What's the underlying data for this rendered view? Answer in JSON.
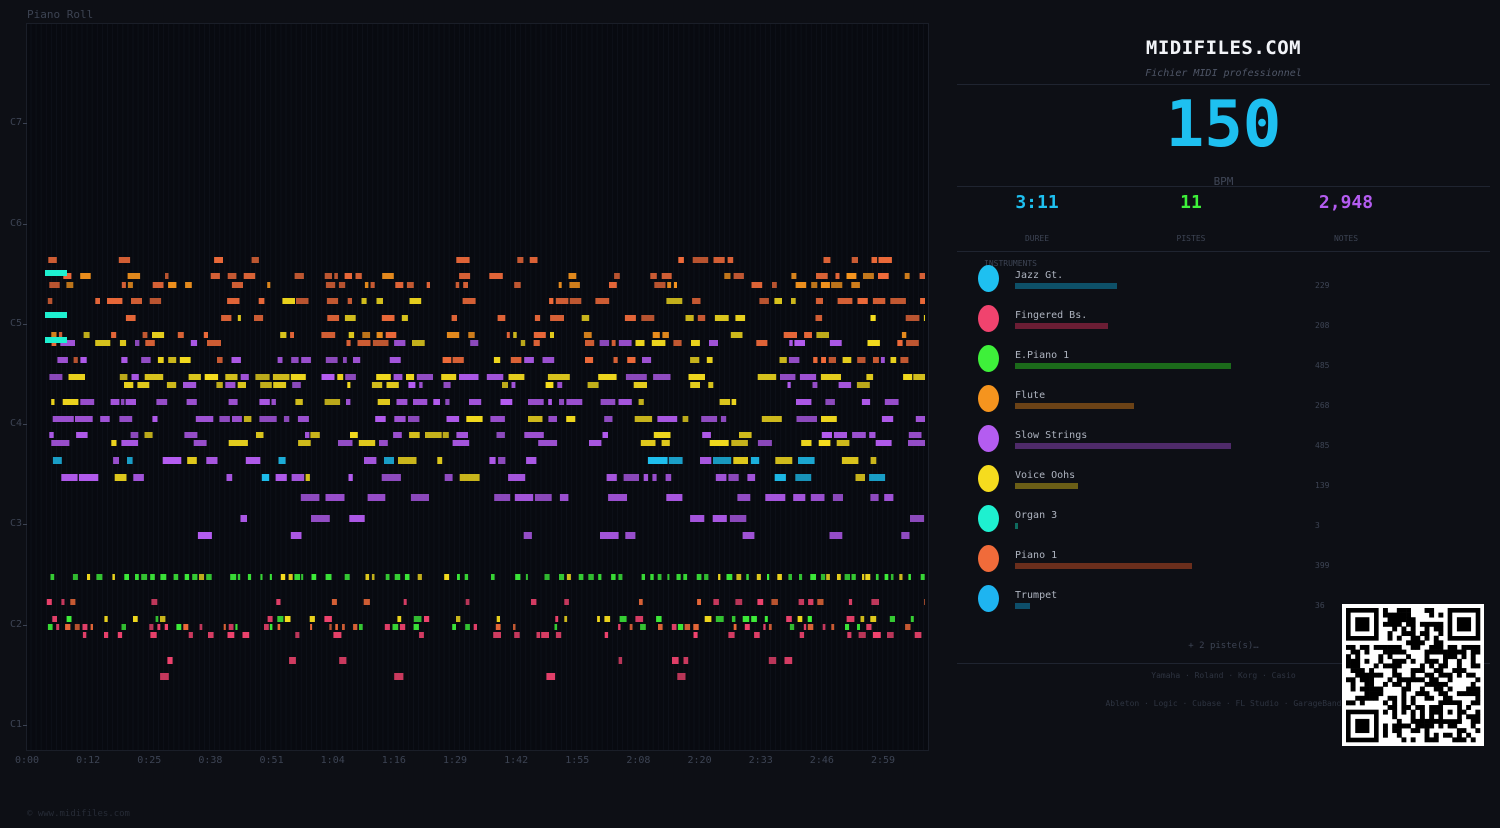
{
  "piano_roll": {
    "title": "Piano Roll",
    "pitch_labels": [
      "C7",
      "C6",
      "C5",
      "C4",
      "C3",
      "C2",
      "C1"
    ],
    "time_labels": [
      "0:00",
      "0:12",
      "0:25",
      "0:38",
      "0:51",
      "1:04",
      "1:16",
      "1:29",
      "1:42",
      "1:55",
      "2:08",
      "2:20",
      "2:33",
      "2:46",
      "2:59"
    ],
    "copyright": "© www.midifiles.com"
  },
  "sidebar": {
    "site": "MIDIFILES.COM",
    "subtitle": "Fichier MIDI professionnel",
    "bpm": "150",
    "bpm_label": "BPM",
    "stats": [
      {
        "value": "3:11",
        "label": "DUREE",
        "color": "#1ec0f0"
      },
      {
        "value": "11",
        "label": "PISTES",
        "color": "#3ef03a"
      },
      {
        "value": "2,948",
        "label": "NOTES",
        "color": "#b45cf0"
      }
    ],
    "instruments_label": "INSTRUMENTS",
    "instruments": [
      {
        "name": "Jazz Gt.",
        "count": "229",
        "color": "#1ec0f0",
        "bar": "#0d5068",
        "share": 0.47
      },
      {
        "name": "Fingered Bs.",
        "count": "208",
        "color": "#f0436e",
        "bar": "#6b1d34",
        "share": 0.43
      },
      {
        "name": "E.Piano 1",
        "count": "485",
        "color": "#3ef03a",
        "bar": "#1b6a1a",
        "share": 1.0
      },
      {
        "name": "Flute",
        "count": "268",
        "color": "#f5941e",
        "bar": "#6b4216",
        "share": 0.55
      },
      {
        "name": "Slow Strings",
        "count": "485",
        "color": "#b45cf0",
        "bar": "#4e2a69",
        "share": 1.0
      },
      {
        "name": "Voice Oohs",
        "count": "139",
        "color": "#f5dc1e",
        "bar": "#6b5e16",
        "share": 0.29
      },
      {
        "name": "Organ 3",
        "count": "3",
        "color": "#1ef0d0",
        "bar": "#0f6a5e",
        "share": 0.01
      },
      {
        "name": "Piano 1",
        "count": "399",
        "color": "#f06b3a",
        "bar": "#6a2e1c",
        "share": 0.82
      },
      {
        "name": "Trumpet",
        "count": "36",
        "color": "#1eb4f0",
        "bar": "#0d4e6a",
        "share": 0.07
      }
    ],
    "more": "+ 2 piste(s)…",
    "brands_line1": "Yamaha · Roland · Korg · Casio",
    "brands_line2": "Ableton · Logic · Cubase · FL Studio · GarageBand"
  }
}
